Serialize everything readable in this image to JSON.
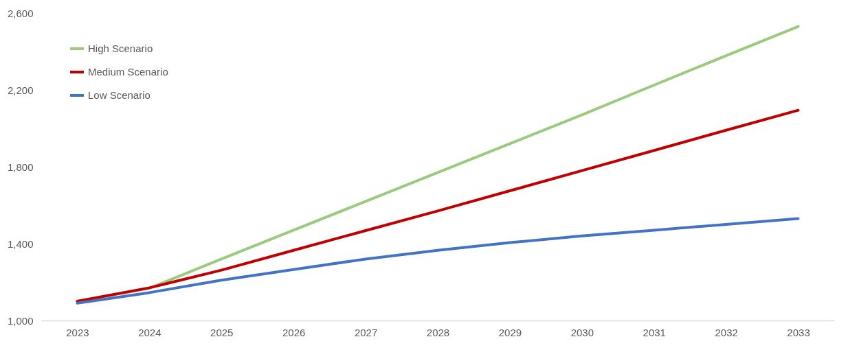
{
  "chart_data": {
    "type": "line",
    "categories": [
      "2023",
      "2024",
      "2025",
      "2026",
      "2027",
      "2028",
      "2029",
      "2030",
      "2031",
      "2032",
      "2033"
    ],
    "series": [
      {
        "name": "High Scenario",
        "color": "#9bc97e",
        "values": [
          1100,
          1168,
          1320,
          1470,
          1620,
          1770,
          1920,
          2070,
          2225,
          2378,
          2530
        ]
      },
      {
        "name": "Medium Scenario",
        "color": "#c00000",
        "values": [
          1100,
          1170,
          1262,
          1365,
          1468,
          1570,
          1675,
          1780,
          1885,
          1990,
          2094
        ]
      },
      {
        "name": "Low Scenario",
        "color": "#4472c4",
        "values": [
          1090,
          1145,
          1210,
          1265,
          1320,
          1365,
          1405,
          1440,
          1470,
          1500,
          1530
        ]
      }
    ],
    "ylim": [
      1000,
      2600
    ],
    "yticks": [
      {
        "value": 1000,
        "label": "1,000"
      },
      {
        "value": 1400,
        "label": "1,400"
      },
      {
        "value": 1800,
        "label": "1,800"
      },
      {
        "value": 2200,
        "label": "2,200"
      },
      {
        "value": 2600,
        "label": "2,600"
      }
    ],
    "legend": "top left",
    "marker": "none",
    "line_style": "solid"
  }
}
